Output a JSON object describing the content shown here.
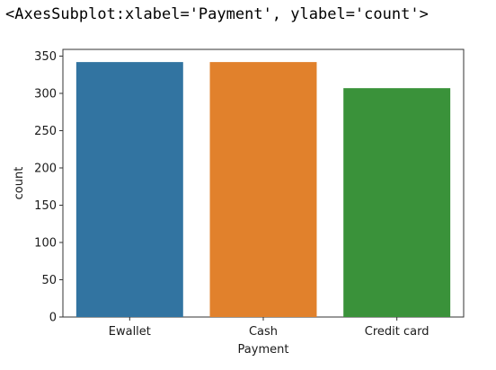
{
  "output_repr": "<AxesSubplot:xlabel='Payment', ylabel='count'>",
  "chart_data": {
    "type": "bar",
    "categories": [
      "Ewallet",
      "Cash",
      "Credit card"
    ],
    "values": [
      342,
      342,
      307
    ],
    "colors": [
      "#3274a1",
      "#e1812c",
      "#3a923a"
    ],
    "xlabel": "Payment",
    "ylabel": "count",
    "ylim": [
      0,
      359
    ],
    "yticks": [
      0,
      50,
      100,
      150,
      200,
      250,
      300,
      350
    ],
    "grid": false
  }
}
